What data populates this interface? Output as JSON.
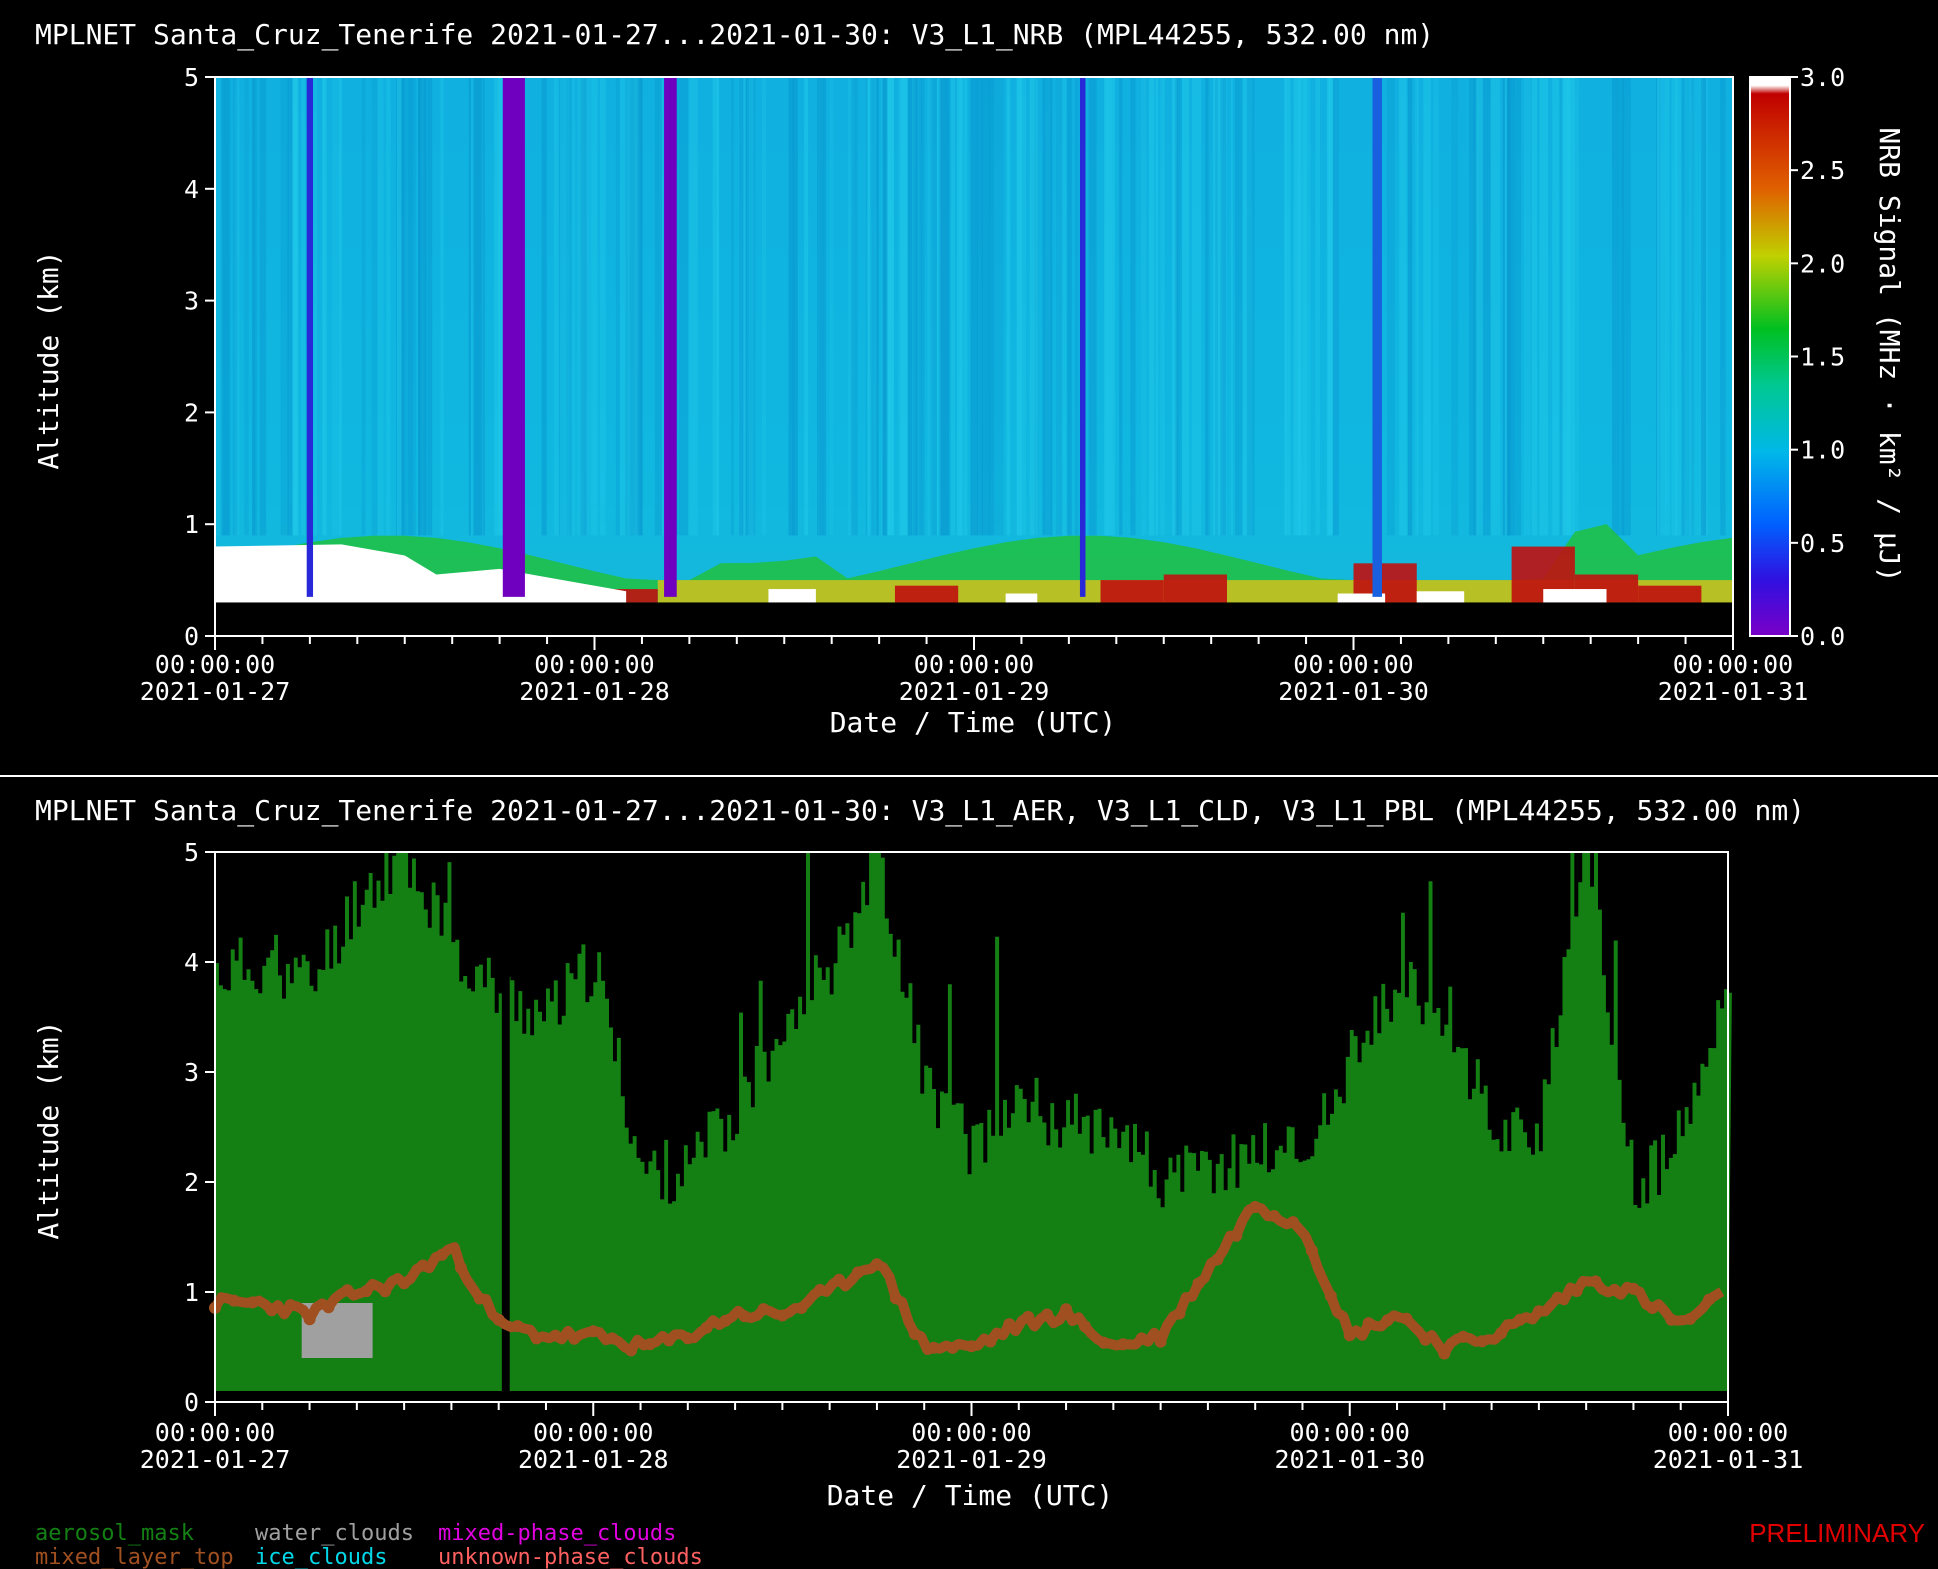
{
  "chart_data": [
    {
      "type": "heatmap",
      "title": "MPLNET Santa_Cruz_Tenerife 2021-01-27...2021-01-30:  V3_L1_NRB  (MPL44255, 532.00 nm)",
      "xlabel": "Date / Time (UTC)",
      "ylabel": "Altitude (km)",
      "x_ticks": [
        {
          "time": "00:00:00",
          "date": "2021-01-27"
        },
        {
          "time": "00:00:00",
          "date": "2021-01-28"
        },
        {
          "time": "00:00:00",
          "date": "2021-01-29"
        },
        {
          "time": "00:00:00",
          "date": "2021-01-30"
        },
        {
          "time": "00:00:00",
          "date": "2021-01-31"
        }
      ],
      "xlim": [
        "2021-01-27 00:00",
        "2021-01-31 00:00"
      ],
      "y_ticks": [
        "0",
        "1",
        "2",
        "3",
        "4",
        "5"
      ],
      "ylim": [
        0,
        5
      ],
      "colorbar": {
        "label": "NRB Signal (MHz · km² / μJ)",
        "ticks": [
          "0.0",
          "0.5",
          "1.0",
          "1.5",
          "2.0",
          "2.5",
          "3.0"
        ],
        "range": [
          0,
          3
        ],
        "colormap": [
          "#7a00c8",
          "#2020e8",
          "#00a0ff",
          "#00c8c8",
          "#00c030",
          "#c8c800",
          "#e05000",
          "#c00000",
          "#ffffff"
        ]
      },
      "features": {
        "background_signal": "0.9",
        "surface_layer_top_km": 0.9,
        "missing_data_below_km": 0.3,
        "boundary_layer_hotspot_km": [
          0.3,
          0.9
        ]
      }
    },
    {
      "type": "heatmap",
      "title": "MPLNET Santa_Cruz_Tenerife 2021-01-27...2021-01-30:  V3_L1_AER, V3_L1_CLD, V3_L1_PBL  (MPL44255, 532.00 nm)",
      "xlabel": "Date / Time (UTC)",
      "ylabel": "Altitude (km)",
      "x_ticks": [
        {
          "time": "00:00:00",
          "date": "2021-01-27"
        },
        {
          "time": "00:00:00",
          "date": "2021-01-28"
        },
        {
          "time": "00:00:00",
          "date": "2021-01-29"
        },
        {
          "time": "00:00:00",
          "date": "2021-01-30"
        },
        {
          "time": "00:00:00",
          "date": "2021-01-31"
        }
      ],
      "xlim": [
        "2021-01-27 00:00",
        "2021-01-31 00:00"
      ],
      "y_ticks": [
        "0",
        "1",
        "2",
        "3",
        "4",
        "5"
      ],
      "ylim": [
        0,
        5
      ],
      "aerosol_top_km": {
        "hours": [
          0,
          3,
          6,
          9,
          12,
          15,
          18,
          21,
          24,
          27,
          30,
          33,
          36,
          39,
          42,
          45,
          48,
          51,
          54,
          57,
          60,
          63,
          66,
          69,
          72,
          75,
          78,
          81,
          84,
          87,
          90,
          93,
          96
        ],
        "values": [
          3.9,
          4.0,
          3.8,
          4.6,
          5.0,
          4.1,
          3.7,
          3.5,
          4.0,
          2.1,
          2.1,
          2.6,
          3.5,
          4.0,
          5.0,
          2.9,
          2.3,
          2.8,
          2.5,
          2.6,
          2.0,
          2.1,
          2.3,
          2.3,
          3.0,
          3.8,
          3.6,
          2.5,
          2.5,
          5.0,
          1.9,
          2.4,
          3.8
        ]
      },
      "mixed_layer_top_km": {
        "hours": [
          0,
          3,
          6,
          9,
          12,
          15,
          18,
          21,
          24,
          27,
          30,
          33,
          36,
          39,
          42,
          45,
          48,
          51,
          54,
          57,
          60,
          63,
          66,
          69,
          72,
          75,
          78,
          81,
          84,
          87,
          90,
          93,
          96
        ],
        "values": [
          0.9,
          0.9,
          0.8,
          1.0,
          1.1,
          1.4,
          0.7,
          0.6,
          0.6,
          0.5,
          0.6,
          0.8,
          0.8,
          1.0,
          1.3,
          0.5,
          0.5,
          0.7,
          0.8,
          0.5,
          0.6,
          1.2,
          1.8,
          1.6,
          0.6,
          0.8,
          0.5,
          0.6,
          0.8,
          1.1,
          1.0,
          0.7,
          1.0
        ]
      },
      "water_clouds": {
        "x_range_hours": [
          5.5,
          10
        ],
        "y_range_km": [
          0.4,
          0.9
        ]
      },
      "legend": [
        {
          "name": "aerosol_mask",
          "color": "#148014"
        },
        {
          "name": "water_clouds",
          "color": "#a0a0a0"
        },
        {
          "name": "mixed-phase_clouds",
          "color": "#e000e0"
        },
        {
          "name": "mixed_layer_top",
          "color": "#a05020"
        },
        {
          "name": "ice_clouds",
          "color": "#00d8e8"
        },
        {
          "name": "unknown-phase_clouds",
          "color": "#ff6060"
        }
      ]
    }
  ],
  "watermark": "PRELIMINARY"
}
